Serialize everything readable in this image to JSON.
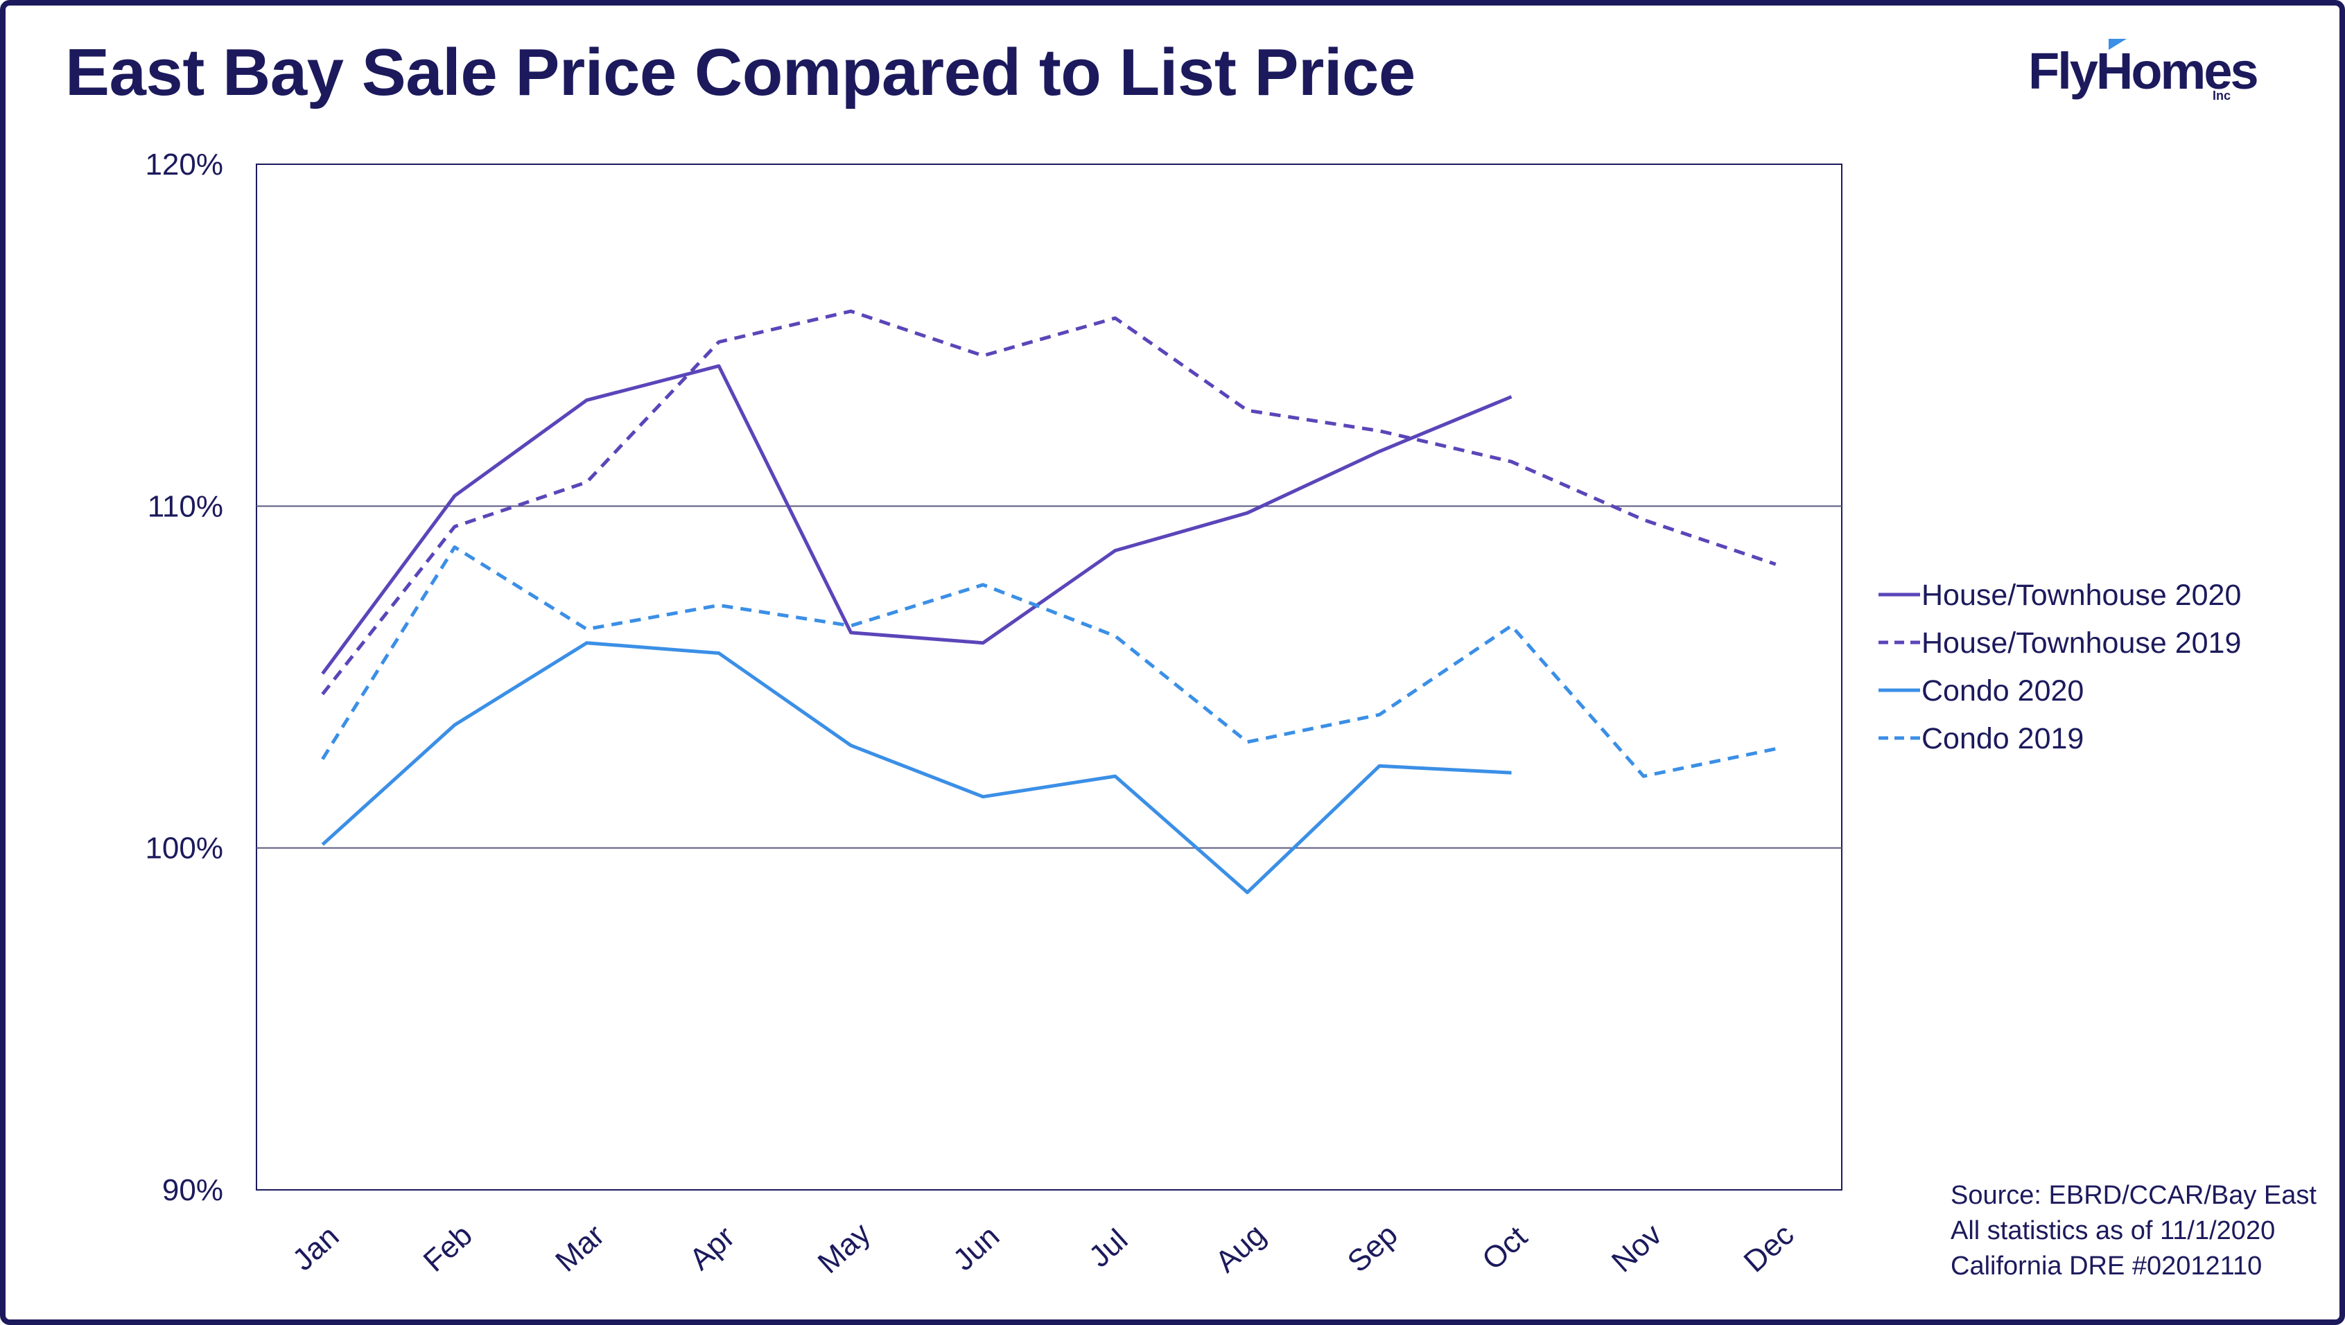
{
  "title": "East Bay Sale Price Compared to List Price",
  "logo": {
    "text": "FlyHomes",
    "suffix": "Inc"
  },
  "source_lines": [
    "Source: EBRD/CCAR/Bay East",
    "All statistics as of 11/1/2020",
    "California DRE #02012110"
  ],
  "colors": {
    "text": "#1c1a5c",
    "purple": "#5b45b9",
    "blue": "#3b8fe6",
    "grid": "#5a5a80"
  },
  "chart_data": {
    "type": "line",
    "title": "East Bay Sale Price Compared to List Price",
    "xlabel": "",
    "ylabel": "",
    "categories": [
      "Jan",
      "Feb",
      "Mar",
      "Apr",
      "May",
      "Jun",
      "Jul",
      "Aug",
      "Sep",
      "Oct",
      "Nov",
      "Dec"
    ],
    "ylim": [
      90,
      120
    ],
    "yticks": [
      90,
      100,
      110,
      120
    ],
    "ytick_labels": [
      "90%",
      "100%",
      "110%",
      "120%"
    ],
    "grid": "horizontal",
    "legend_position": "right",
    "series": [
      {
        "name": "House/Townhouse 2020",
        "color": "#5b45b9",
        "dash": "solid",
        "values": [
          105.1,
          110.3,
          113.1,
          114.1,
          106.3,
          106.0,
          108.7,
          109.8,
          111.6,
          113.2,
          null,
          null
        ]
      },
      {
        "name": "House/Townhouse 2019",
        "color": "#5b45b9",
        "dash": "dashed",
        "values": [
          104.5,
          109.4,
          110.7,
          114.8,
          115.7,
          114.4,
          115.5,
          112.8,
          112.2,
          111.3,
          109.6,
          108.3
        ]
      },
      {
        "name": "Condo 2020",
        "color": "#3b8fe6",
        "dash": "solid",
        "values": [
          100.1,
          103.6,
          106.0,
          105.7,
          103.0,
          101.5,
          102.1,
          98.7,
          102.4,
          102.2,
          null,
          null
        ]
      },
      {
        "name": "Condo 2019",
        "color": "#3b8fe6",
        "dash": "dashed",
        "values": [
          102.6,
          108.8,
          106.4,
          107.1,
          106.5,
          107.7,
          106.2,
          103.1,
          103.9,
          106.5,
          102.1,
          102.9
        ]
      }
    ]
  }
}
